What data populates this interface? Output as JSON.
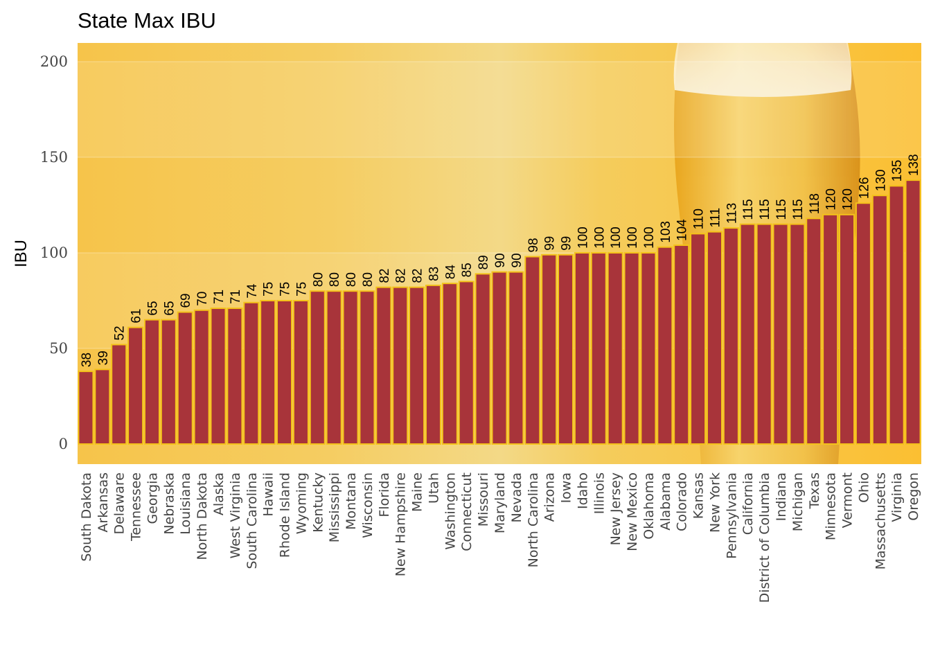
{
  "chart_data": {
    "type": "bar",
    "title": "State Max IBU",
    "xlabel": "",
    "ylabel": "IBU",
    "ylim": [
      0,
      210
    ],
    "yticks": [
      0,
      50,
      100,
      150,
      200
    ],
    "grid": true,
    "categories": [
      "South Dakota",
      "Arkansas",
      "Delaware",
      "Tennessee",
      "Georgia",
      "Nebraska",
      "Louisiana",
      "North Dakota",
      "Alaska",
      "West Virginia",
      "South Carolina",
      "Hawaii",
      "Rhode Island",
      "Wyoming",
      "Kentucky",
      "Mississippi",
      "Montana",
      "Wisconsin",
      "Florida",
      "New Hampshire",
      "Maine",
      "Utah",
      "Washington",
      "Connecticut",
      "Missouri",
      "Maryland",
      "Nevada",
      "North Carolina",
      "Arizona",
      "Iowa",
      "Idaho",
      "Illinois",
      "New Jersey",
      "New Mexico",
      "Oklahoma",
      "Alabama",
      "Colorado",
      "Kansas",
      "New York",
      "Pennsylvania",
      "California",
      "District of Columbia",
      "Indiana",
      "Michigan",
      "Texas",
      "Minnesota",
      "Vermont",
      "Ohio",
      "Massachusetts",
      "Virginia",
      "Oregon"
    ],
    "values": [
      38,
      39,
      52,
      61,
      65,
      65,
      69,
      70,
      71,
      71,
      74,
      75,
      75,
      75,
      80,
      80,
      80,
      80,
      82,
      82,
      82,
      83,
      84,
      85,
      89,
      90,
      90,
      98,
      99,
      99,
      100,
      100,
      100,
      100,
      100,
      103,
      104,
      110,
      111,
      113,
      115,
      115,
      115,
      115,
      118,
      120,
      120,
      126,
      130,
      135,
      138
    ],
    "colors": {
      "bar_fill": "#a8343a",
      "bar_outline": "#f4c21a",
      "background": "#f6c443"
    }
  }
}
